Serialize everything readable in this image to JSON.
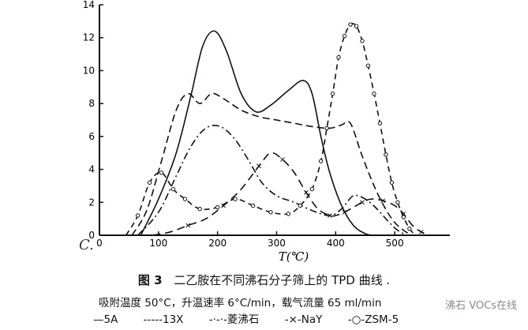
{
  "chart_data": {
    "type": "line",
    "xlabel": "T(℃)",
    "ylabel": "",
    "xlim": [
      0,
      580
    ],
    "ylim": [
      0,
      14
    ],
    "x_ticks": [
      0,
      100,
      200,
      300,
      400,
      500
    ],
    "y_ticks": [
      0,
      2,
      4,
      6,
      8,
      10,
      12,
      14
    ],
    "grid": false,
    "series": [
      {
        "name": "5A",
        "style": "solid",
        "x": [
          70,
          100,
          130,
          155,
          175,
          195,
          215,
          240,
          265,
          290,
          320,
          345,
          360,
          375,
          390,
          410,
          430,
          450,
          465
        ],
        "y": [
          0,
          2.2,
          5.0,
          8.5,
          11.5,
          12.4,
          11.2,
          8.6,
          7.5,
          7.9,
          8.8,
          9.4,
          8.6,
          6.0,
          3.8,
          1.8,
          0.6,
          0.1,
          0
        ]
      },
      {
        "name": "13X",
        "style": "dashed",
        "x": [
          55,
          80,
          105,
          130,
          150,
          170,
          190,
          210,
          240,
          270,
          300,
          330,
          360,
          390,
          410,
          425,
          445,
          470,
          495,
          515,
          530
        ],
        "y": [
          0,
          1.5,
          4.5,
          7.6,
          8.6,
          8.0,
          8.6,
          8.3,
          7.6,
          7.2,
          7.0,
          6.8,
          6.6,
          6.5,
          6.7,
          6.8,
          4.8,
          2.6,
          1.0,
          0.3,
          0
        ]
      },
      {
        "name": "菱沸石",
        "style": "dashdot",
        "x": [
          65,
          100,
          130,
          155,
          180,
          205,
          230,
          255,
          275,
          300,
          330,
          360,
          390,
          410,
          430,
          450,
          470,
          490,
          505,
          520
        ],
        "y": [
          0,
          1.4,
          3.6,
          5.4,
          6.5,
          6.6,
          5.8,
          4.4,
          3.2,
          2.4,
          2.0,
          1.5,
          1.2,
          1.6,
          2.4,
          2.2,
          1.6,
          0.8,
          0.3,
          0
        ]
      },
      {
        "name": "NaY",
        "style": "dashcross",
        "x": [
          90,
          120,
          150,
          180,
          210,
          240,
          270,
          290,
          310,
          330,
          350,
          370,
          390,
          400,
          415,
          430,
          445,
          460,
          480,
          500,
          515,
          530,
          545,
          560
        ],
        "y": [
          0,
          0.2,
          0.6,
          1.0,
          1.8,
          2.8,
          4.2,
          5.0,
          4.6,
          3.8,
          2.6,
          1.6,
          1.2,
          1.2,
          1.4,
          1.7,
          2.0,
          2.2,
          2.1,
          1.8,
          1.3,
          0.6,
          0.2,
          0
        ]
      },
      {
        "name": "ZSM-5",
        "style": "dashcircle",
        "x": [
          45,
          65,
          85,
          105,
          125,
          145,
          170,
          200,
          230,
          260,
          290,
          320,
          340,
          360,
          375,
          385,
          395,
          405,
          415,
          425,
          435,
          445,
          455,
          465,
          475,
          485,
          495,
          505,
          515,
          525,
          535
        ],
        "y": [
          0,
          1.2,
          3.2,
          3.8,
          2.8,
          2.2,
          1.6,
          1.7,
          2.2,
          1.8,
          1.4,
          1.3,
          1.8,
          2.8,
          4.5,
          6.5,
          8.6,
          10.8,
          12.1,
          12.8,
          12.7,
          11.8,
          10.3,
          8.6,
          6.8,
          4.9,
          3.2,
          2.0,
          1.1,
          0.4,
          0
        ]
      }
    ]
  },
  "caption": {
    "figure_label": "图 3",
    "title": "二乙胺在不同沸石分子筛上的 TPD 曲线 ."
  },
  "conditions": "吸附温度 50°C，升温速率 6°C/min，载气流量 65 ml/min",
  "legend": [
    {
      "marker": "—",
      "label": "5A"
    },
    {
      "marker": "-----",
      "label": "13X"
    },
    {
      "marker": "-·-·-",
      "label": "菱沸石"
    },
    {
      "marker": "-×-",
      "label": "NaY"
    },
    {
      "marker": "-○-",
      "label": "ZSM-5"
    }
  ],
  "corner_mark": "C.",
  "watermark": "沸石 VOCs在线"
}
